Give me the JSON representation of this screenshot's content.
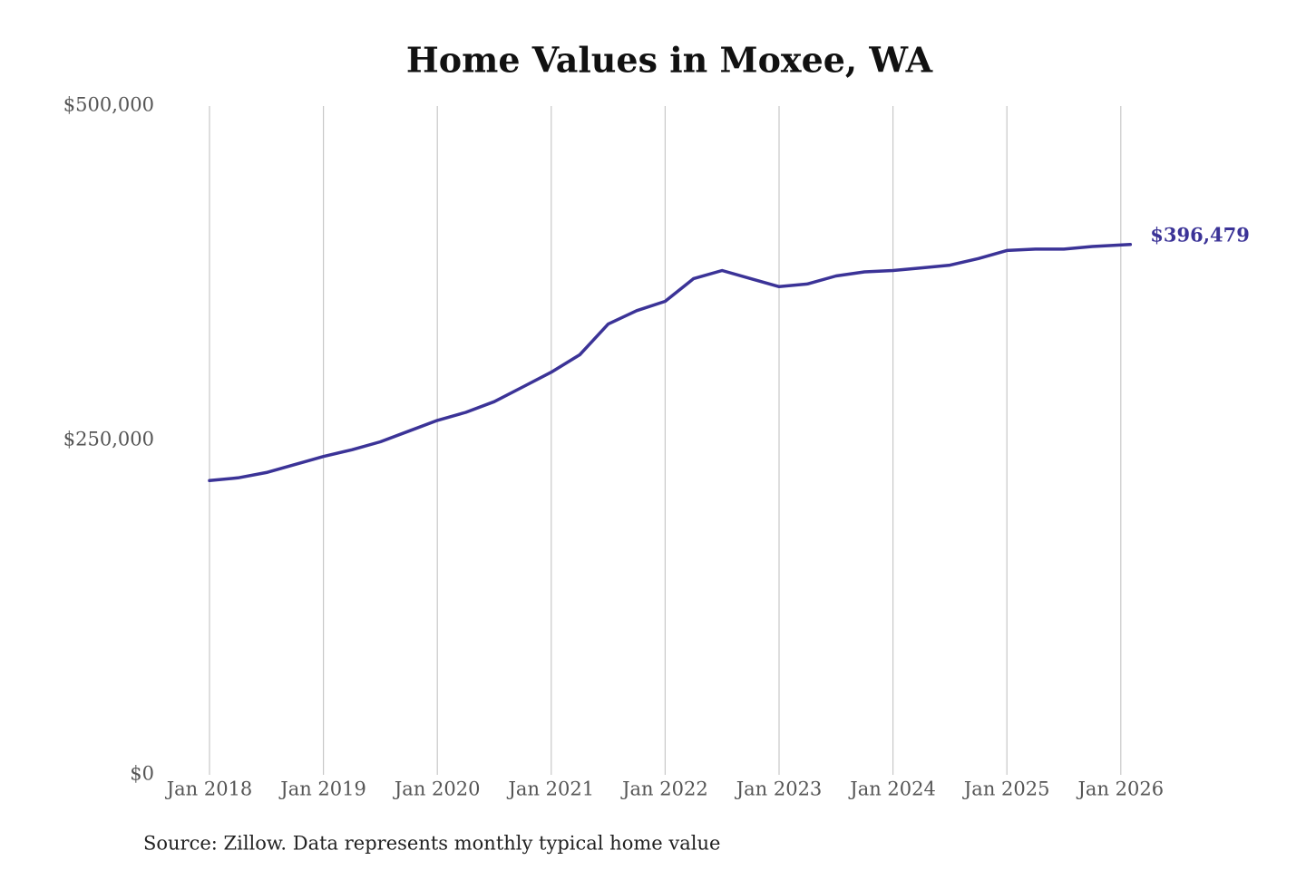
{
  "chart_data": {
    "type": "line",
    "title": "Home Values in Moxee, WA",
    "source": "Source: Zillow. Data represents monthly typical home value",
    "x": [
      "2018-01",
      "2018-04",
      "2018-07",
      "2018-10",
      "2019-01",
      "2019-04",
      "2019-07",
      "2019-10",
      "2020-01",
      "2020-04",
      "2020-07",
      "2020-10",
      "2021-01",
      "2021-04",
      "2021-07",
      "2021-10",
      "2022-01",
      "2022-04",
      "2022-07",
      "2022-10",
      "2023-01",
      "2023-04",
      "2023-07",
      "2023-10",
      "2024-01",
      "2024-04",
      "2024-07",
      "2024-10",
      "2025-01",
      "2025-04",
      "2025-07",
      "2025-10",
      "2026-02"
    ],
    "series": [
      {
        "name": "Home value",
        "color": "#3b3397",
        "values": [
          220000,
          222000,
          226000,
          232000,
          238000,
          243000,
          249000,
          257000,
          265000,
          271000,
          279000,
          290000,
          301000,
          314000,
          337000,
          347000,
          354000,
          371000,
          377000,
          371000,
          365000,
          367000,
          373000,
          376000,
          377000,
          379000,
          381000,
          386000,
          392000,
          393000,
          393000,
          395000,
          396479
        ],
        "value_labels": [
          null,
          null,
          null,
          null,
          null,
          null,
          null,
          null,
          null,
          null,
          null,
          null,
          null,
          null,
          null,
          null,
          null,
          null,
          null,
          null,
          null,
          null,
          null,
          null,
          null,
          null,
          null,
          null,
          null,
          null,
          null,
          null,
          "$396,479"
        ]
      }
    ],
    "xlim": [
      "2018-01",
      "2026-02"
    ],
    "xticks": [
      {
        "value": "2018-01",
        "label": "Jan 2018"
      },
      {
        "value": "2019-01",
        "label": "Jan 2019"
      },
      {
        "value": "2020-01",
        "label": "Jan 2020"
      },
      {
        "value": "2021-01",
        "label": "Jan 2021"
      },
      {
        "value": "2022-01",
        "label": "Jan 2022"
      },
      {
        "value": "2023-01",
        "label": "Jan 2023"
      },
      {
        "value": "2024-01",
        "label": "Jan 2024"
      },
      {
        "value": "2025-01",
        "label": "Jan 2025"
      },
      {
        "value": "2026-01",
        "label": "Jan 2026"
      }
    ],
    "ylim": [
      0,
      500000
    ],
    "yticks": [
      {
        "value": 0,
        "label": "$0"
      },
      {
        "value": 250000,
        "label": "$250,000"
      },
      {
        "value": 500000,
        "label": "$500,000"
      }
    ],
    "grid": "x"
  }
}
